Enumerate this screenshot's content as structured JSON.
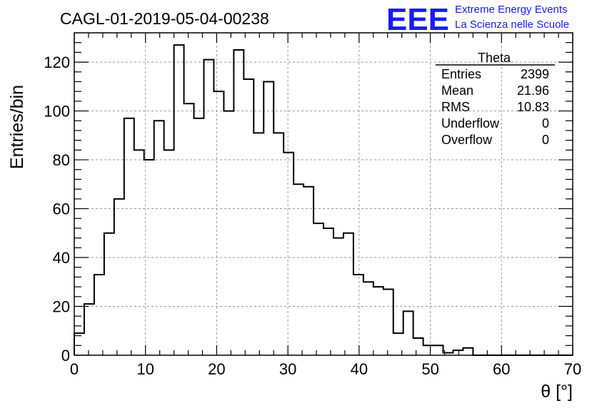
{
  "header": {
    "run_title": "CAGL-01-2019-05-04-00238",
    "logo_mark": "EEE",
    "logo_line1": "Extreme Energy Events",
    "logo_line2": "La Scienza nelle Scuole",
    "logo_color": "#1a1aff"
  },
  "stats_box": {
    "title": "Theta",
    "rows": [
      {
        "label": "Entries",
        "value": "2399"
      },
      {
        "label": "Mean",
        "value": "21.96"
      },
      {
        "label": "RMS",
        "value": "10.83"
      },
      {
        "label": "Underflow",
        "value": "0"
      },
      {
        "label": "Overflow",
        "value": "0"
      }
    ]
  },
  "chart_data": {
    "type": "bar",
    "subtype": "step-histogram",
    "title": "CAGL-01-2019-05-04-00238",
    "xlabel": "θ [°]",
    "ylabel": "Entries/bin",
    "xlim": [
      0,
      70
    ],
    "ylim": [
      0,
      132
    ],
    "bin_width": 1.4,
    "x_ticks": [
      0,
      10,
      20,
      30,
      40,
      50,
      60,
      70
    ],
    "y_ticks": [
      0,
      20,
      40,
      60,
      80,
      100,
      120
    ],
    "grid": true,
    "line_color": "#000000",
    "values": [
      9,
      21,
      33,
      50,
      64,
      97,
      84,
      80,
      96,
      84,
      127,
      103,
      97,
      121,
      108,
      100,
      125,
      113,
      91,
      112,
      91,
      83,
      70,
      69,
      54,
      52,
      48,
      50,
      33,
      30,
      28,
      27,
      9,
      18,
      7,
      4,
      4,
      1,
      2,
      3,
      0,
      0,
      0,
      0,
      0,
      0,
      0,
      0,
      0,
      0
    ]
  }
}
